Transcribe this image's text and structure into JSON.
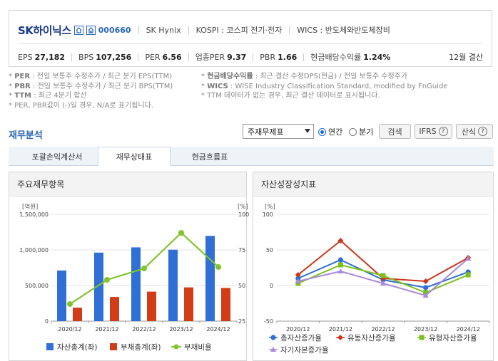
{
  "company": {
    "name": "SK하이닉스",
    "code": "000660",
    "english": "SK Hynix",
    "market": "KOSPI : 코스피 전기·전자",
    "wics": "WICS : 반도체와반도체장비",
    "settlement": "12월 결산",
    "stats": [
      {
        "label": "EPS",
        "value": "27,182"
      },
      {
        "label": "BPS",
        "value": "107,256"
      },
      {
        "label": "PER",
        "value": "6.56"
      },
      {
        "label": "업종PER",
        "value": "9.37"
      },
      {
        "label": "PBR",
        "value": "1.66"
      },
      {
        "label": "현금배당수익률",
        "value": "1.24%"
      }
    ]
  },
  "notes": {
    "r1c1_key": "PER",
    "r1c1_text": " : 전일 보통주 수정주가 / 최근 분기 EPS(TTM)",
    "r1c2_key": "현금배당수익률",
    "r1c2_text": " : 최근 결산 수정DPS(현금) / 전일 보통주 수정주가",
    "r2c1_key": "PBR",
    "r2c1_text": " : 전일 보통주 수정주가 / 최근 분기 BPS(TTM)",
    "r2c2_key": "WICS",
    "r2c2_text": " : WISE Industry Classification Standard, modified by FnGuide",
    "r3c1_key": "TTM",
    "r3c1_text": " : 최근 4분기 합산",
    "r3c2_text": "TTM 데이터가 없는 경우, 최근 결산 데이터로 표시됩니다.",
    "r4c1_text": "PER, PBR값이 (-)일 경우, N/A로 표기됩니다."
  },
  "finance": {
    "title": "재무분석",
    "select_value": "주재무제표",
    "radio_annual": "연간",
    "radio_quarter": "분기",
    "search_btn": "검색",
    "ifrs_btn": "IFRS",
    "calc_btn": "산식",
    "tabs": [
      "포괄손익계산서",
      "재무상태표",
      "현금흐름표"
    ]
  },
  "panel_left_title": "주요재무항목",
  "panel_right_title": "자산성장성지표",
  "chart_data": [
    {
      "type": "bar",
      "categories": [
        "2020/12",
        "2021/12",
        "2022/12",
        "2023/12",
        "2024/12"
      ],
      "y_left_label": "[억원]",
      "y_right_label": "[%]",
      "y_left_ticks": [
        "0",
        "500,000",
        "1,000,000",
        "1,500,000"
      ],
      "y_right_ticks": [
        "25",
        "50",
        "75",
        "100"
      ],
      "ylim_left": [
        0,
        1500000
      ],
      "ylim_right": [
        25,
        100
      ],
      "series": [
        {
          "name": "자산총계(좌)",
          "kind": "bar",
          "color": "#2f6fd6",
          "values": [
            711000,
            962000,
            1036000,
            1003000,
            1197000
          ]
        },
        {
          "name": "부채총계(좌)",
          "kind": "bar",
          "color": "#d23c16",
          "values": [
            189000,
            339000,
            414000,
            474000,
            466000
          ]
        },
        {
          "name": "부채비율",
          "kind": "line",
          "color": "#82c42a",
          "values": [
            37,
            54,
            62,
            87,
            63
          ]
        }
      ]
    },
    {
      "type": "line",
      "categories": [
        "2020/12",
        "2021/12",
        "2022/12",
        "2023/12",
        "2024/12"
      ],
      "y_label": "[%]",
      "y_ticks": [
        "-50",
        "0",
        "50",
        "100"
      ],
      "ylim": [
        -50,
        100
      ],
      "series": [
        {
          "name": "총자산증가율",
          "color": "#2f6fd6",
          "marker": "circle",
          "values": [
            10,
            36,
            8,
            -3,
            19
          ]
        },
        {
          "name": "유동자산증가율",
          "color": "#c9361c",
          "marker": "diamond",
          "values": [
            15,
            63,
            10,
            6,
            39
          ]
        },
        {
          "name": "유형자산증가율",
          "color": "#7cc01e",
          "marker": "square",
          "values": [
            3,
            29,
            14,
            -10,
            15
          ]
        },
        {
          "name": "자기자본증가율",
          "color": "#a98ad8",
          "marker": "triangle",
          "values": [
            6,
            20,
            3,
            -14,
            38
          ]
        }
      ]
    }
  ]
}
